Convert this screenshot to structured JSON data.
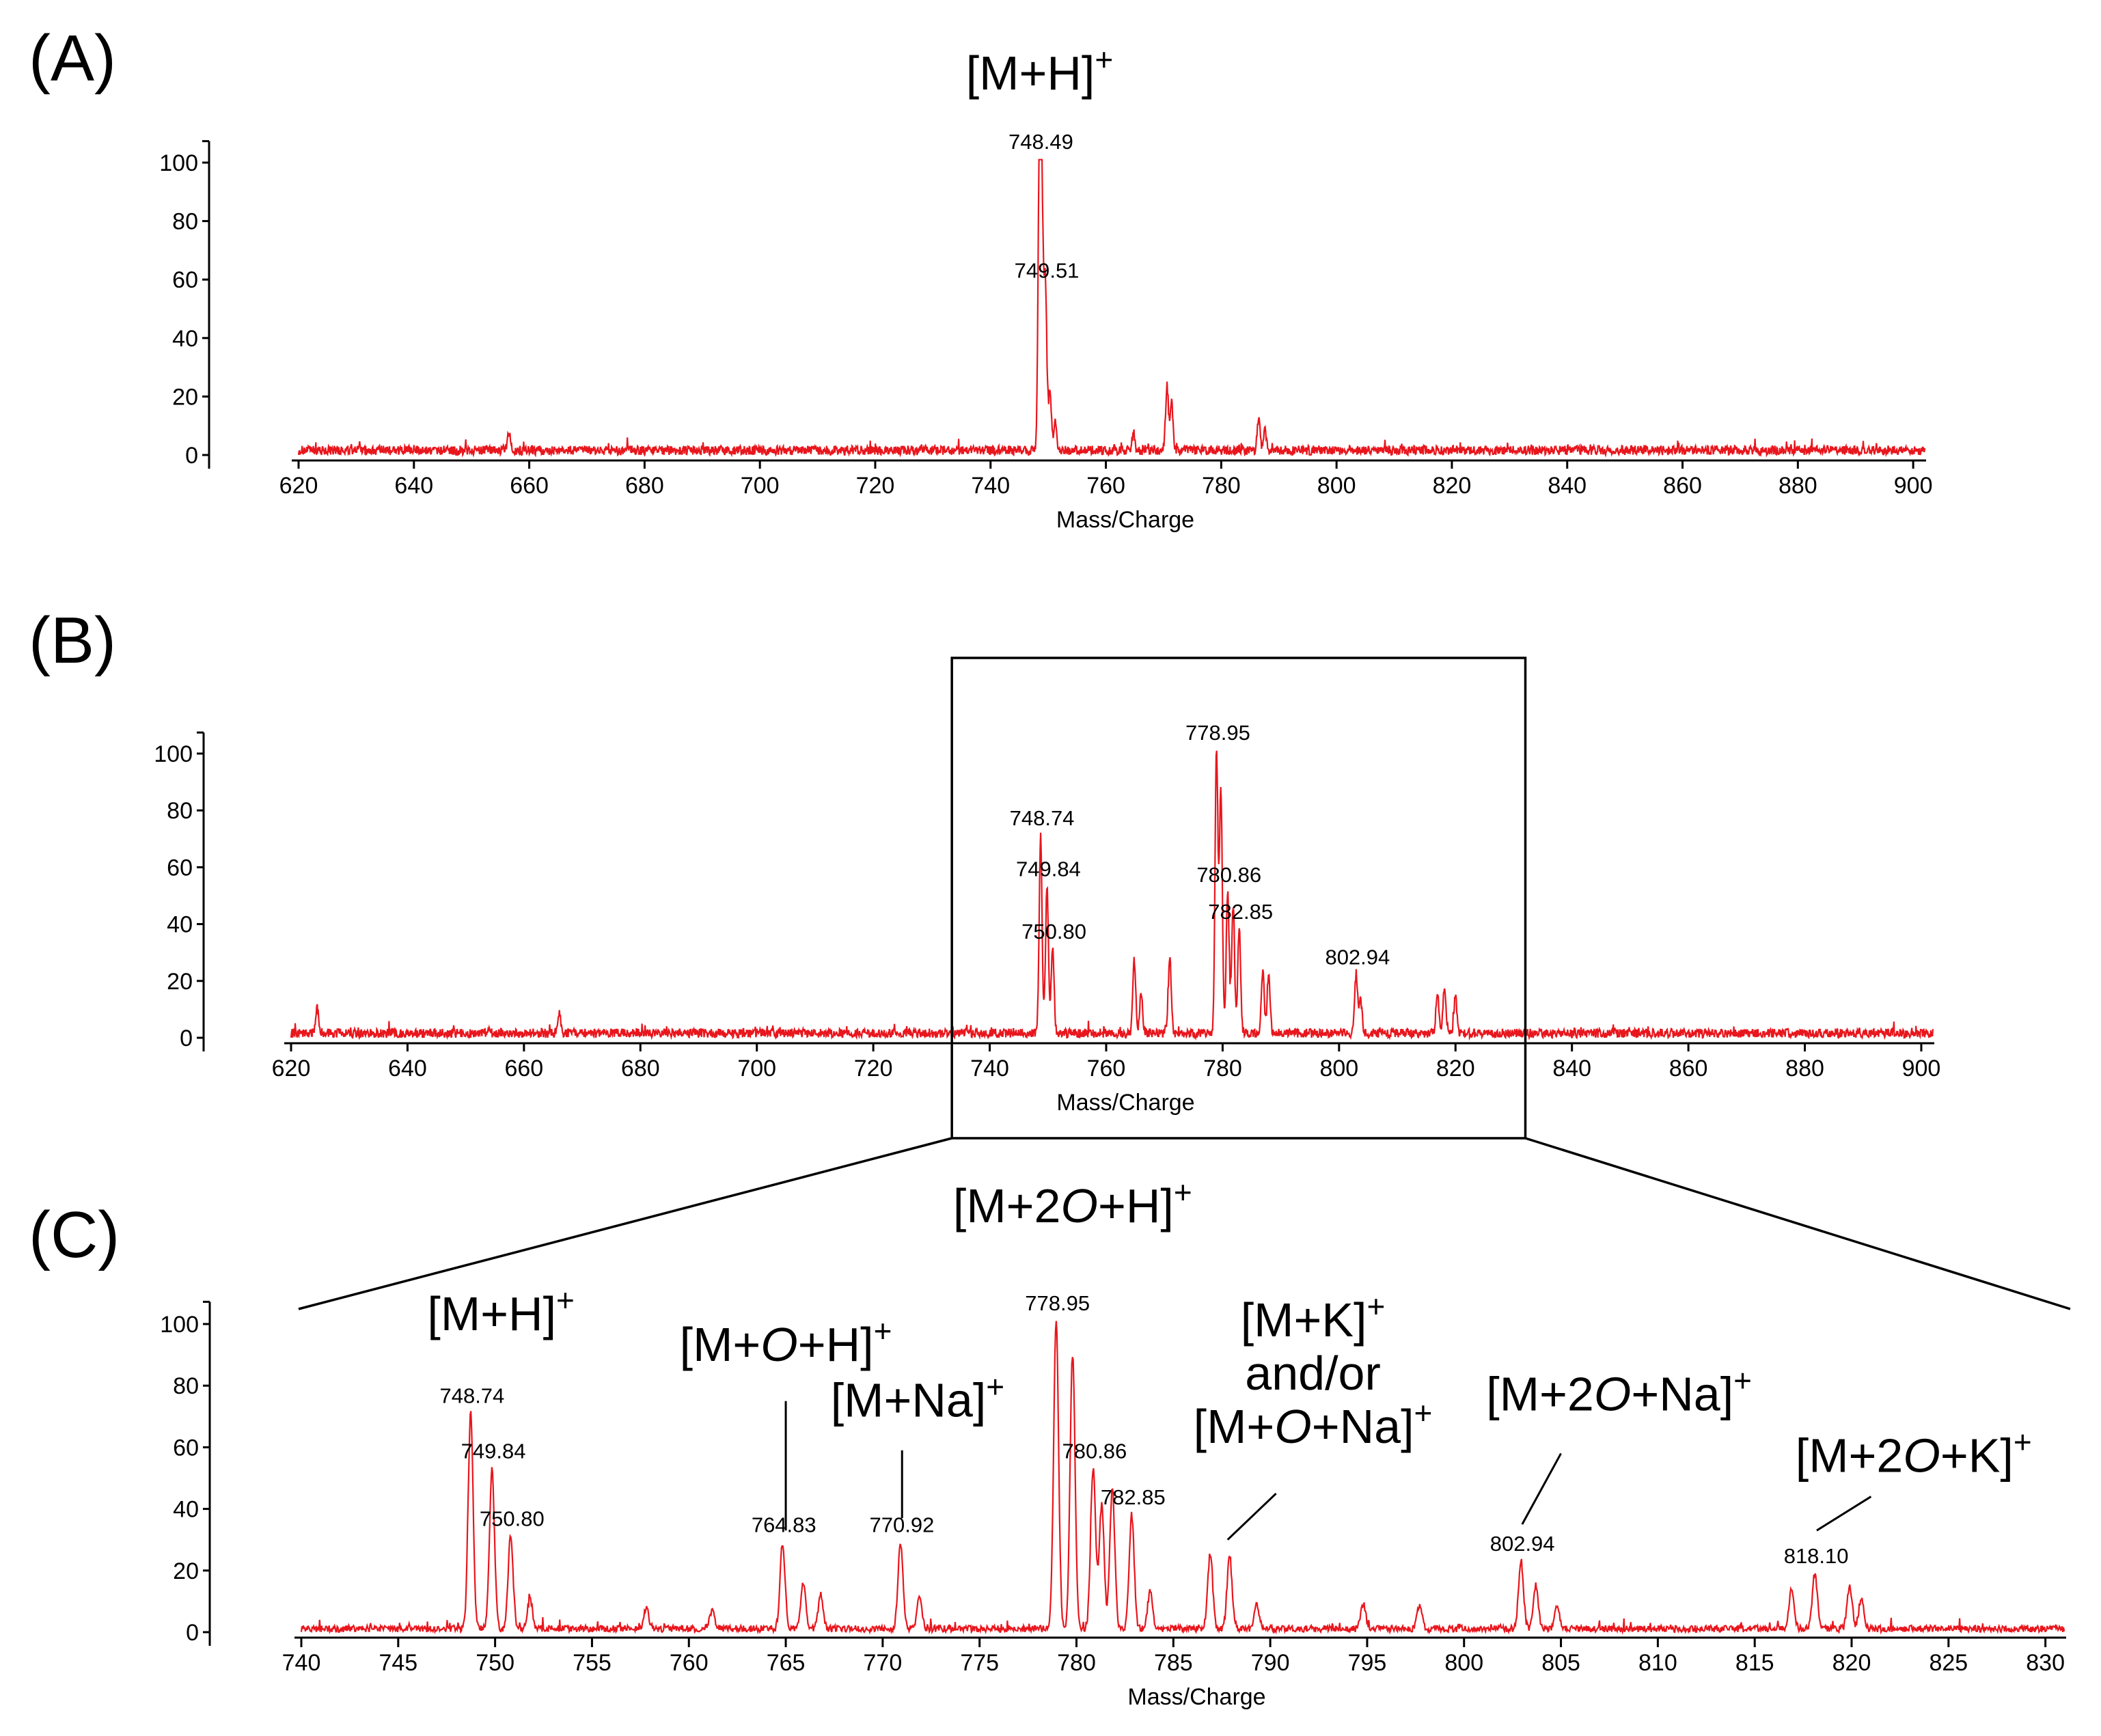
{
  "chart_data": [
    {
      "type": "line",
      "panel_label": "(A)",
      "xlabel": "Mass/Charge",
      "ylabel": "",
      "xlim": [
        620,
        902
      ],
      "ylim": [
        0,
        105
      ],
      "x_ticks": [
        620,
        640,
        660,
        680,
        700,
        720,
        740,
        760,
        780,
        800,
        820,
        840,
        860,
        880,
        900
      ],
      "y_ticks": [
        0,
        20,
        40,
        60,
        80,
        100
      ],
      "series": [
        {
          "name": "spectrum-a",
          "color": "#e8161d"
        }
      ],
      "peaks": [
        {
          "mz": 748.49,
          "intensity": 100,
          "label": "748.49"
        },
        {
          "mz": 749.51,
          "intensity": 56,
          "label": "749.51"
        },
        {
          "mz": 748.9,
          "intensity": 75
        },
        {
          "mz": 750.3,
          "intensity": 20
        },
        {
          "mz": 751.2,
          "intensity": 10
        },
        {
          "mz": 770.6,
          "intensity": 22
        },
        {
          "mz": 771.4,
          "intensity": 16
        },
        {
          "mz": 786.5,
          "intensity": 11
        },
        {
          "mz": 787.6,
          "intensity": 7
        },
        {
          "mz": 656.5,
          "intensity": 6
        },
        {
          "mz": 764.8,
          "intensity": 6
        }
      ],
      "annotations": [
        {
          "text": "[M+H]",
          "sup": "+",
          "mz": 748.5,
          "y": 125
        }
      ]
    },
    {
      "type": "line",
      "panel_label": "(B)",
      "xlabel": "Mass/Charge",
      "ylabel": "",
      "xlim": [
        620,
        902
      ],
      "ylim": [
        0,
        105
      ],
      "x_ticks": [
        620,
        640,
        660,
        680,
        700,
        720,
        740,
        760,
        780,
        800,
        820,
        840,
        860,
        880,
        900
      ],
      "y_ticks": [
        0,
        20,
        40,
        60,
        80,
        100
      ],
      "series": [
        {
          "name": "spectrum-b",
          "color": "#e8161d"
        }
      ],
      "peaks": [
        {
          "mz": 748.74,
          "intensity": 70,
          "label": "748.74"
        },
        {
          "mz": 749.84,
          "intensity": 52,
          "label": "749.84"
        },
        {
          "mz": 750.8,
          "intensity": 30,
          "label": "750.80"
        },
        {
          "mz": 764.83,
          "intensity": 25
        },
        {
          "mz": 766.0,
          "intensity": 15
        },
        {
          "mz": 770.92,
          "intensity": 27
        },
        {
          "mz": 778.95,
          "intensity": 100,
          "label": "778.95"
        },
        {
          "mz": 779.7,
          "intensity": 85
        },
        {
          "mz": 780.86,
          "intensity": 50,
          "label": "780.86"
        },
        {
          "mz": 781.8,
          "intensity": 45
        },
        {
          "mz": 782.85,
          "intensity": 37,
          "label": "782.85"
        },
        {
          "mz": 786.9,
          "intensity": 22
        },
        {
          "mz": 787.9,
          "intensity": 21
        },
        {
          "mz": 802.94,
          "intensity": 21,
          "label": "802.94"
        },
        {
          "mz": 803.7,
          "intensity": 12
        },
        {
          "mz": 816.9,
          "intensity": 15
        },
        {
          "mz": 818.1,
          "intensity": 17
        },
        {
          "mz": 820.0,
          "intensity": 13
        },
        {
          "mz": 624.5,
          "intensity": 9
        },
        {
          "mz": 666.0,
          "intensity": 7
        }
      ],
      "zoom_window": {
        "from": 733.5,
        "to": 832
      }
    },
    {
      "type": "line",
      "panel_label": "(C)",
      "xlabel": "Mass/Charge",
      "ylabel": "",
      "xlim": [
        740,
        831
      ],
      "ylim": [
        0,
        105
      ],
      "x_ticks": [
        740,
        745,
        750,
        755,
        760,
        765,
        770,
        775,
        780,
        785,
        790,
        795,
        800,
        805,
        810,
        815,
        820,
        825,
        830
      ],
      "y_ticks": [
        0,
        20,
        40,
        60,
        80,
        100
      ],
      "series": [
        {
          "name": "spectrum-c",
          "color": "#e8161d"
        }
      ],
      "peaks": [
        {
          "mz": 748.74,
          "intensity": 70,
          "label": "748.74"
        },
        {
          "mz": 749.84,
          "intensity": 52,
          "label": "749.84"
        },
        {
          "mz": 750.8,
          "intensity": 30,
          "label": "750.80"
        },
        {
          "mz": 751.8,
          "intensity": 10
        },
        {
          "mz": 757.8,
          "intensity": 7
        },
        {
          "mz": 761.2,
          "intensity": 6
        },
        {
          "mz": 764.83,
          "intensity": 28,
          "label": "764.83"
        },
        {
          "mz": 765.9,
          "intensity": 15
        },
        {
          "mz": 766.8,
          "intensity": 11
        },
        {
          "mz": 770.92,
          "intensity": 28,
          "label": "770.92"
        },
        {
          "mz": 771.9,
          "intensity": 10
        },
        {
          "mz": 778.95,
          "intensity": 100,
          "label": "778.95"
        },
        {
          "mz": 779.8,
          "intensity": 89
        },
        {
          "mz": 780.86,
          "intensity": 52,
          "label": "780.86"
        },
        {
          "mz": 781.3,
          "intensity": 40
        },
        {
          "mz": 781.85,
          "intensity": 46
        },
        {
          "mz": 782.85,
          "intensity": 37,
          "label": "782.85"
        },
        {
          "mz": 783.8,
          "intensity": 12
        },
        {
          "mz": 786.9,
          "intensity": 24
        },
        {
          "mz": 787.9,
          "intensity": 23
        },
        {
          "mz": 789.3,
          "intensity": 8
        },
        {
          "mz": 794.8,
          "intensity": 8
        },
        {
          "mz": 797.7,
          "intensity": 8
        },
        {
          "mz": 802.94,
          "intensity": 22,
          "label": "802.94"
        },
        {
          "mz": 803.7,
          "intensity": 14
        },
        {
          "mz": 804.8,
          "intensity": 7
        },
        {
          "mz": 816.9,
          "intensity": 13
        },
        {
          "mz": 818.1,
          "intensity": 18,
          "label": "818.10"
        },
        {
          "mz": 819.9,
          "intensity": 14
        },
        {
          "mz": 820.5,
          "intensity": 10
        }
      ],
      "annotations": [
        {
          "lines": [
            {
              "text": "[M+H]",
              "sup": "+"
            }
          ],
          "mz": 750.3,
          "y": 98
        },
        {
          "lines": [
            {
              "text": "[M+",
              "it": "O",
              "rest": "+H]",
              "sup": "+"
            }
          ],
          "mz": 765.0,
          "y": 88,
          "leader": [
            {
              "mz": 765.0,
              "y": 75
            },
            {
              "mz": 765.0,
              "y": 33
            }
          ]
        },
        {
          "lines": [
            {
              "text": "[M+Na]",
              "sup": "+"
            }
          ],
          "mz": 771.8,
          "y": 70,
          "leader": [
            {
              "mz": 771.0,
              "y": 59
            },
            {
              "mz": 771.0,
              "y": 37
            }
          ]
        },
        {
          "lines": [
            {
              "text": "[M+2",
              "it": "O",
              "rest": "+H]",
              "sup": "+"
            }
          ],
          "mz": 779.8,
          "y": 133
        },
        {
          "lines": [
            {
              "text": "[M+K]",
              "sup": "+"
            },
            {
              "text": "and/or"
            },
            {
              "text": "[M+",
              "it": "O",
              "rest": "+Na]",
              "sup": "+"
            }
          ],
          "mz": 792.2,
          "y": 96,
          "leader": [
            {
              "mz": 790.3,
              "y": 45
            },
            {
              "mz": 787.8,
              "y": 30
            }
          ]
        },
        {
          "lines": [
            {
              "text": "[M+2",
              "it": "O",
              "rest": "+Na]",
              "sup": "+"
            }
          ],
          "mz": 808.0,
          "y": 72,
          "leader": [
            {
              "mz": 805.0,
              "y": 58
            },
            {
              "mz": 803.0,
              "y": 35
            }
          ]
        },
        {
          "lines": [
            {
              "text": "[M+2",
              "it": "O",
              "rest": "+K]",
              "sup": "+"
            }
          ],
          "mz": 823.2,
          "y": 52,
          "leader": [
            {
              "mz": 821.0,
              "y": 44
            },
            {
              "mz": 818.2,
              "y": 33
            }
          ]
        }
      ]
    }
  ]
}
